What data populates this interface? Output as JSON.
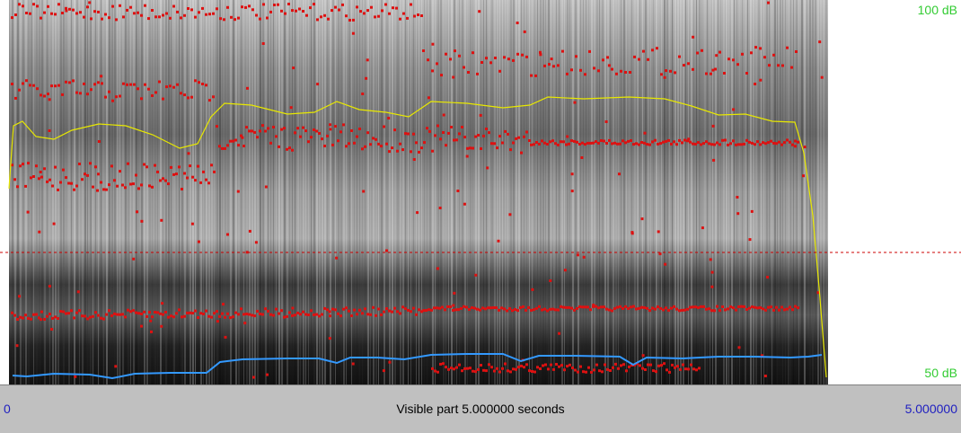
{
  "scale": {
    "top_label": "100 dB",
    "bottom_label": "50 dB"
  },
  "visible_bar": {
    "label": "Visible part 5.000000 seconds",
    "start": "0",
    "end": "5.000000"
  },
  "colors": {
    "formant": "#dd1111",
    "intensity": "#e8e800",
    "pitch": "#3399ff",
    "cursor": "#cc0000",
    "scale_text": "#33cc33",
    "time_text": "#2020c0",
    "bar_bg": "#c0c0c0"
  }
}
